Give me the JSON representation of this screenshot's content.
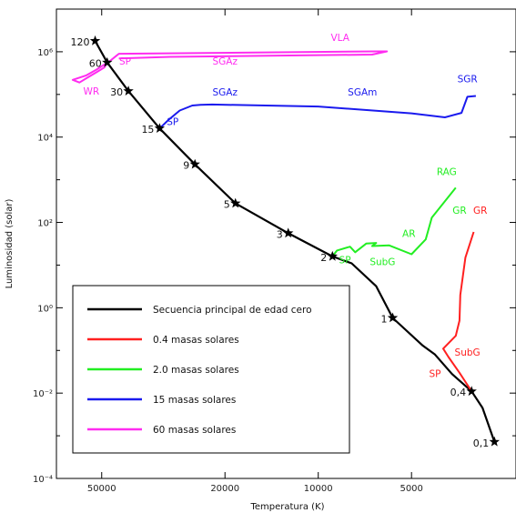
{
  "chart_data": {
    "type": "line",
    "title": "",
    "xlabel": "Temperatura (K)",
    "ylabel": "Luminosidad (solar)",
    "x_scale": "log-reversed",
    "y_scale": "log",
    "xlim": [
      70000,
      2300
    ],
    "ylim": [
      0.0001,
      10000000
    ],
    "grid": false,
    "legend_position": "bottom-left",
    "x_ticks": [
      {
        "value": 50000,
        "label": "50000"
      },
      {
        "value": 20000,
        "label": "20000"
      },
      {
        "value": 10000,
        "label": "10000"
      },
      {
        "value": 5000,
        "label": "5000"
      }
    ],
    "y_ticks": [
      {
        "value": 0.0001,
        "label": "10⁻⁴"
      },
      {
        "value": 0.01,
        "label": "10⁻²"
      },
      {
        "value": 1,
        "label": "10⁰"
      },
      {
        "value": 100,
        "label": "10²"
      },
      {
        "value": 10000,
        "label": "10⁴"
      },
      {
        "value": 1000000,
        "label": "10⁶"
      }
    ],
    "series": [
      {
        "name": "Secuencia principal de edad cero",
        "color": "#000000",
        "points": [
          [
            52500,
            1800000
          ],
          [
            48000,
            560000
          ],
          [
            41000,
            120000
          ],
          [
            32500,
            16000
          ],
          [
            25000,
            2300
          ],
          [
            18500,
            280
          ],
          [
            12500,
            56
          ],
          [
            9000,
            16
          ],
          [
            7800,
            11
          ],
          [
            6500,
            3.2
          ],
          [
            5750,
            0.58
          ],
          [
            4600,
            0.13
          ],
          [
            4200,
            0.08
          ],
          [
            3700,
            0.028
          ],
          [
            3200,
            0.011
          ],
          [
            2950,
            0.0045
          ],
          [
            2700,
            0.00072
          ]
        ]
      },
      {
        "name": "0.4 masas solares",
        "color": "#ff2020",
        "points": [
          [
            3200,
            0.011
          ],
          [
            3500,
            0.03
          ],
          [
            3800,
            0.07
          ],
          [
            3950,
            0.11
          ],
          [
            3600,
            0.22
          ],
          [
            3500,
            0.5
          ],
          [
            3480,
            2
          ],
          [
            3350,
            15
          ],
          [
            3150,
            60
          ]
        ]
      },
      {
        "name": "2.0 masas solares",
        "color": "#22ee22",
        "points": [
          [
            9000,
            16
          ],
          [
            8700,
            22
          ],
          [
            7900,
            27
          ],
          [
            7600,
            20
          ],
          [
            7000,
            32
          ],
          [
            6500,
            33
          ],
          [
            6700,
            28
          ],
          [
            5900,
            29
          ],
          [
            5000,
            18
          ],
          [
            4500,
            40
          ],
          [
            4300,
            130
          ],
          [
            3600,
            650
          ]
        ]
      },
      {
        "name": "15 masas solares",
        "color": "#1a1aee",
        "points": [
          [
            32500,
            16000
          ],
          [
            30500,
            25000
          ],
          [
            28000,
            42000
          ],
          [
            25500,
            55000
          ],
          [
            24000,
            57000
          ],
          [
            22000,
            58000
          ],
          [
            10000,
            52000
          ],
          [
            5000,
            36000
          ],
          [
            3900,
            29000
          ],
          [
            3450,
            37000
          ],
          [
            3300,
            88000
          ],
          [
            3100,
            92000
          ]
        ]
      },
      {
        "name": "60 masas solares",
        "color": "#ff2cf0",
        "points": [
          [
            48000,
            560000
          ],
          [
            49000,
            430000
          ],
          [
            52000,
            330000
          ],
          [
            55000,
            260000
          ],
          [
            59000,
            190000
          ],
          [
            62000,
            220000
          ],
          [
            56000,
            280000
          ],
          [
            52000,
            380000
          ],
          [
            47000,
            610000
          ],
          [
            44000,
            900000
          ],
          [
            6500,
            1020000
          ],
          [
            6000,
            1020000
          ],
          [
            6700,
            860000
          ],
          [
            30000,
            760000
          ],
          [
            44000,
            700000
          ]
        ]
      }
    ],
    "mass_labels": [
      {
        "label": "120",
        "x": 52500,
        "y": 1800000
      },
      {
        "label": "60",
        "x": 48000,
        "y": 560000
      },
      {
        "label": "30",
        "x": 41000,
        "y": 120000
      },
      {
        "label": "15",
        "x": 32500,
        "y": 16000
      },
      {
        "label": "9",
        "x": 25000,
        "y": 2300
      },
      {
        "label": "5",
        "x": 18500,
        "y": 280
      },
      {
        "label": "3",
        "x": 12500,
        "y": 56
      },
      {
        "label": "2",
        "x": 9000,
        "y": 16
      },
      {
        "label": "1",
        "x": 5750,
        "y": 0.58
      },
      {
        "label": "0,4",
        "x": 3200,
        "y": 0.011
      },
      {
        "label": "0,1",
        "x": 2700,
        "y": 0.00072
      }
    ],
    "annotations": [
      {
        "text": "VLA",
        "color": "#ff2cf0",
        "x": 8500,
        "y": 1800000
      },
      {
        "text": "SP",
        "color": "#ff2cf0",
        "x": 42000,
        "y": 500000
      },
      {
        "text": "SGAz",
        "color": "#ff2cf0",
        "x": 20000,
        "y": 500000
      },
      {
        "text": "WR",
        "color": "#ff2cf0",
        "x": 54000,
        "y": 100000
      },
      {
        "text": "SGAz",
        "color": "#1a1aee",
        "x": 20000,
        "y": 95000
      },
      {
        "text": "SGAm",
        "color": "#1a1aee",
        "x": 7200,
        "y": 95000
      },
      {
        "text": "SGR",
        "color": "#1a1aee",
        "x": 3300,
        "y": 190000
      },
      {
        "text": "SP",
        "color": "#1a1aee",
        "x": 29500,
        "y": 19000
      },
      {
        "text": "RAG",
        "color": "#22ee22",
        "x": 3850,
        "y": 1300
      },
      {
        "text": "GR",
        "color": "#22ee22",
        "x": 3500,
        "y": 160
      },
      {
        "text": "GR",
        "color": "#ff2020",
        "x": 3000,
        "y": 160
      },
      {
        "text": "AR",
        "color": "#22ee22",
        "x": 5100,
        "y": 46
      },
      {
        "text": "SP",
        "color": "#22ee22",
        "x": 8200,
        "y": 11
      },
      {
        "text": "SubG",
        "color": "#22ee22",
        "x": 6200,
        "y": 10
      },
      {
        "text": "SubG",
        "color": "#ff2020",
        "x": 3300,
        "y": 0.075
      },
      {
        "text": "SP",
        "color": "#ff2020",
        "x": 4200,
        "y": 0.024
      }
    ]
  }
}
